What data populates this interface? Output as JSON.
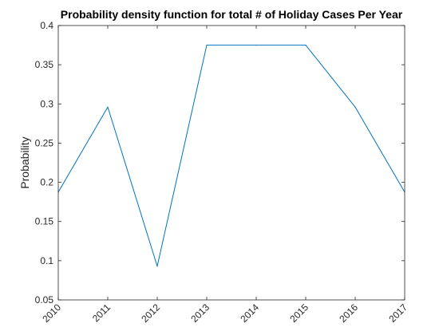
{
  "chart_data": {
    "type": "line",
    "title": "Probability density function for total # of Holiday Cases Per Year",
    "xlabel": "",
    "ylabel": "Probability",
    "x": [
      2010,
      2011,
      2012,
      2013,
      2014,
      2015,
      2016,
      2017
    ],
    "xticks": [
      "2010",
      "2011",
      "2012",
      "2013",
      "2014",
      "2015",
      "2016",
      "2017"
    ],
    "yticks": [
      "0.05",
      "0.1",
      "0.15",
      "0.2",
      "0.25",
      "0.3",
      "0.35",
      "0.4"
    ],
    "xlim": [
      2010,
      2017
    ],
    "ylim": [
      0.05,
      0.4
    ],
    "grid": false,
    "series": [
      {
        "values": [
          0.1875,
          0.296,
          0.093,
          0.375,
          0.375,
          0.375,
          0.296,
          0.1875
        ],
        "color": "#0072BD"
      }
    ]
  }
}
